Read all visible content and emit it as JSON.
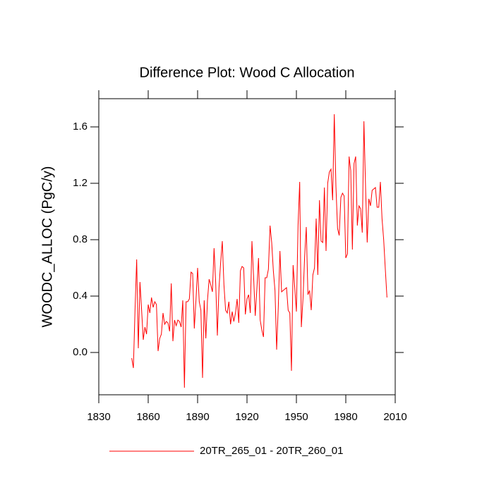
{
  "chart_data": {
    "type": "line",
    "title": "Difference Plot: Wood C Allocation",
    "y_label": "WOODC_ALLOC  (PgC/y)",
    "x": [
      1850,
      1851,
      1852,
      1853,
      1854,
      1855,
      1856,
      1857,
      1858,
      1859,
      1860,
      1861,
      1862,
      1863,
      1864,
      1865,
      1866,
      1867,
      1868,
      1869,
      1870,
      1871,
      1872,
      1873,
      1874,
      1875,
      1876,
      1877,
      1878,
      1879,
      1880,
      1881,
      1882,
      1883,
      1884,
      1885,
      1886,
      1887,
      1888,
      1889,
      1890,
      1891,
      1892,
      1893,
      1894,
      1895,
      1896,
      1897,
      1898,
      1899,
      1900,
      1901,
      1902,
      1903,
      1904,
      1905,
      1906,
      1907,
      1908,
      1909,
      1910,
      1911,
      1912,
      1913,
      1914,
      1915,
      1916,
      1917,
      1918,
      1919,
      1920,
      1921,
      1922,
      1923,
      1924,
      1925,
      1926,
      1927,
      1928,
      1929,
      1930,
      1931,
      1932,
      1933,
      1934,
      1935,
      1936,
      1937,
      1938,
      1939,
      1940,
      1941,
      1942,
      1943,
      1944,
      1945,
      1946,
      1947,
      1948,
      1949,
      1950,
      1951,
      1952,
      1953,
      1954,
      1955,
      1956,
      1957,
      1958,
      1959,
      1960,
      1961,
      1962,
      1963,
      1964,
      1965,
      1966,
      1967,
      1968,
      1969,
      1970,
      1971,
      1972,
      1973,
      1974,
      1975,
      1976,
      1977,
      1978,
      1979,
      1980,
      1981,
      1982,
      1983,
      1984,
      1985,
      1986,
      1987,
      1988,
      1989,
      1990,
      1991,
      1992,
      1993,
      1994,
      1995,
      1996,
      1997,
      1998,
      1999,
      2000,
      2001,
      2002,
      2003,
      2004,
      2005
    ],
    "series": [
      {
        "name": "20TR_265_01 - 20TR_260_01",
        "color": "#ff0000",
        "values": [
          -0.04,
          -0.11,
          0.3,
          0.66,
          0.03,
          0.5,
          0.3,
          0.09,
          0.18,
          0.13,
          0.34,
          0.28,
          0.39,
          0.32,
          0.36,
          0.34,
          0.01,
          0.1,
          0.13,
          0.28,
          0.2,
          0.22,
          0.21,
          0.15,
          0.49,
          0.08,
          0.23,
          0.19,
          0.23,
          0.22,
          0.18,
          0.37,
          -0.25,
          0.36,
          0.36,
          0.38,
          0.57,
          0.56,
          0.17,
          0.37,
          0.6,
          0.36,
          0.3,
          -0.18,
          0.37,
          0.1,
          0.37,
          0.52,
          0.48,
          0.43,
          0.74,
          0.49,
          0.12,
          0.46,
          0.64,
          0.79,
          0.48,
          0.3,
          0.28,
          0.36,
          0.2,
          0.29,
          0.22,
          0.28,
          0.38,
          0.21,
          0.58,
          0.61,
          0.6,
          0.27,
          0.38,
          0.41,
          0.28,
          0.79,
          0.54,
          0.26,
          0.45,
          0.67,
          0.23,
          0.16,
          0.11,
          0.53,
          0.53,
          0.59,
          0.9,
          0.78,
          0.58,
          0.44,
          0.02,
          0.32,
          0.72,
          0.43,
          0.44,
          0.45,
          0.46,
          0.3,
          0.28,
          -0.13,
          0.62,
          0.46,
          0.29,
          0.9,
          1.21,
          0.18,
          0.38,
          0.68,
          0.89,
          0.41,
          0.44,
          0.3,
          0.55,
          0.6,
          0.95,
          0.55,
          1.08,
          0.79,
          0.78,
          1.17,
          0.72,
          1.2,
          1.28,
          1.3,
          1.08,
          1.69,
          1.18,
          0.88,
          0.83,
          1.1,
          1.13,
          1.11,
          0.67,
          0.7,
          1.39,
          1.29,
          0.73,
          1.34,
          1.39,
          0.9,
          1.04,
          1.02,
          0.85,
          1.64,
          1.17,
          0.78,
          1.09,
          1.04,
          1.15,
          1.16,
          1.17,
          1.03,
          1.03,
          1.21,
          0.95,
          0.8,
          0.59,
          0.39
        ]
      }
    ],
    "xlim": [
      1830,
      2010
    ],
    "xticks": [
      1830,
      1860,
      1890,
      1920,
      1950,
      1980,
      2010
    ],
    "ylim": [
      -0.3,
      1.8
    ],
    "yticks": [
      {
        "value": 0,
        "label": "0.0"
      },
      0.4,
      0.8,
      1.2,
      1.6
    ],
    "grid": false,
    "legend": "bottom"
  }
}
